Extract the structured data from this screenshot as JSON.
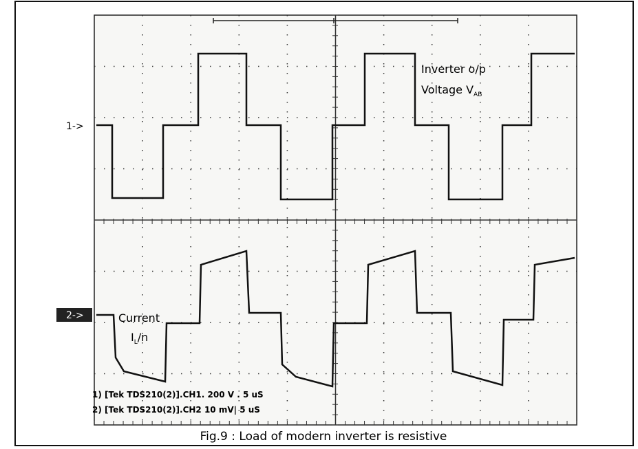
{
  "figure": {
    "channel_markers": [
      "1->",
      "2->"
    ],
    "voltage_label": {
      "line1": "Inverter o/p",
      "line2": "Voltage V",
      "subscript": "AB"
    },
    "current_label": {
      "line1": "Current",
      "line2_main": "I",
      "line2_sub": "L",
      "line2_rest": "/n"
    },
    "readouts": [
      "1) [Tek TDS210(2)].CH1. 200 V . 5 uS",
      "2) [Tek TDS210(2)].CH2 10 mV| 5 uS"
    ],
    "caption": "Fig.9 : Load of modern inverter is resistive"
  }
}
